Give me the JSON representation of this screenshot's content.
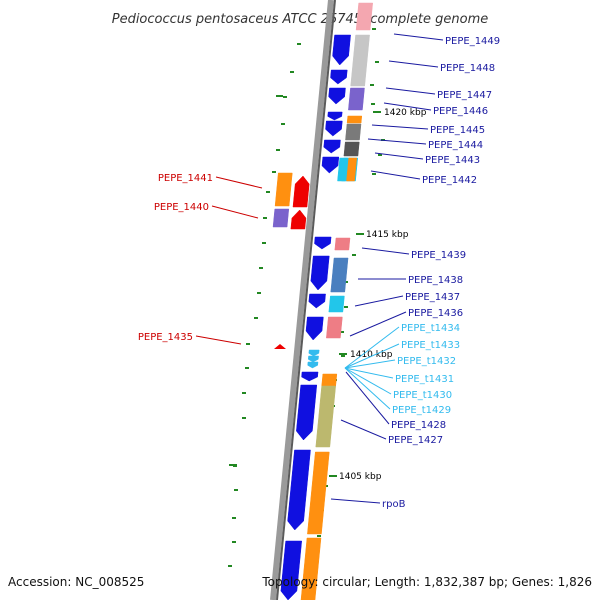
{
  "title": "Pediococcus pentosaceus ATCC 25745, complete genome",
  "accession": "Accession: NC_008525",
  "topology": "Topology: circular; Length: 1,832,387 bp; Genes: 1,826",
  "colors": {
    "coding": "#1010e0",
    "rna": "#33bbee",
    "reverse_label": "#cc0000",
    "forward_label": "#1a1aa0",
    "tick": "#228822"
  },
  "scale_labels": [
    "1420 kbp",
    "1415 kbp",
    "1410 kbp",
    "1405 kbp"
  ],
  "forward_genes": [
    {
      "label": "PEPE_1449",
      "color": "#1a1aa0"
    },
    {
      "label": "PEPE_1448",
      "color": "#1a1aa0"
    },
    {
      "label": "PEPE_1447",
      "color": "#1a1aa0"
    },
    {
      "label": "PEPE_1446",
      "color": "#1a1aa0"
    },
    {
      "label": "PEPE_1445",
      "color": "#1a1aa0"
    },
    {
      "label": "PEPE_1444",
      "color": "#1a1aa0"
    },
    {
      "label": "PEPE_1443",
      "color": "#1a1aa0"
    },
    {
      "label": "PEPE_1442",
      "color": "#1a1aa0"
    },
    {
      "label": "PEPE_1439",
      "color": "#1a1aa0"
    },
    {
      "label": "PEPE_1438",
      "color": "#1a1aa0"
    },
    {
      "label": "PEPE_1437",
      "color": "#1a1aa0"
    },
    {
      "label": "PEPE_1436",
      "color": "#1a1aa0"
    },
    {
      "label": "PEPE_t1434",
      "color": "#33bbee"
    },
    {
      "label": "PEPE_t1433",
      "color": "#33bbee"
    },
    {
      "label": "PEPE_t1432",
      "color": "#33bbee"
    },
    {
      "label": "PEPE_t1431",
      "color": "#33bbee"
    },
    {
      "label": "PEPE_t1430",
      "color": "#33bbee"
    },
    {
      "label": "PEPE_t1429",
      "color": "#33bbee"
    },
    {
      "label": "PEPE_1428",
      "color": "#1a1aa0"
    },
    {
      "label": "PEPE_1427",
      "color": "#1a1aa0"
    },
    {
      "label": "rpoB",
      "color": "#1a1aa0"
    }
  ],
  "reverse_genes": [
    {
      "label": "PEPE_1441",
      "color": "#cc0000"
    },
    {
      "label": "PEPE_1440",
      "color": "#cc0000"
    },
    {
      "label": "PEPE_1435",
      "color": "#cc0000"
    }
  ]
}
